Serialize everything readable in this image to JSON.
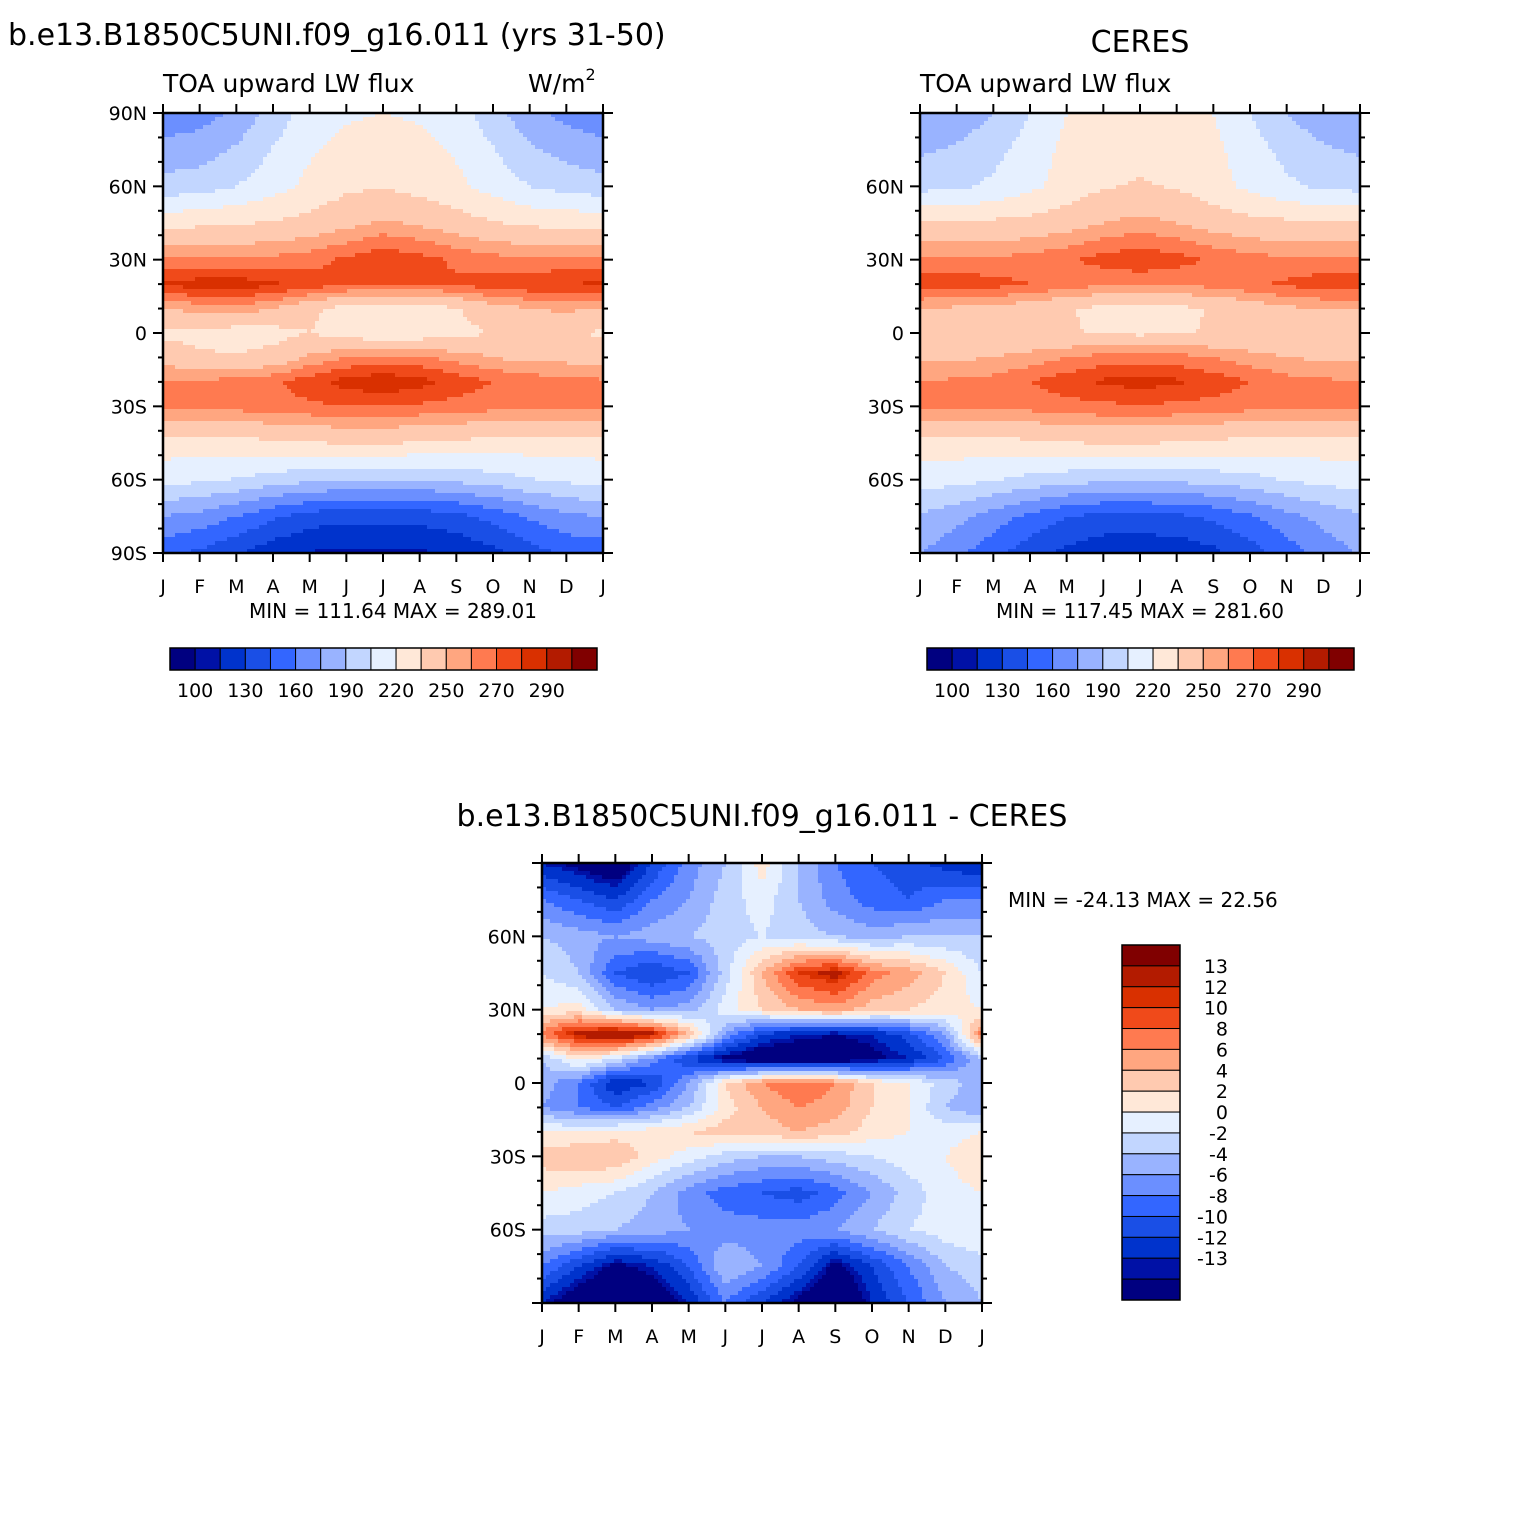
{
  "chart_data": [
    {
      "type": "heatmap",
      "title": "b.e13.B1850C5UNI.f09_g16.011 (yrs 31-50)",
      "subtitle": "TOA upward LW flux",
      "units": "W/m",
      "units_sup": "2",
      "x_ticks": [
        "J",
        "F",
        "M",
        "A",
        "M",
        "J",
        "J",
        "A",
        "S",
        "O",
        "N",
        "D",
        "J"
      ],
      "y_ticks": [
        "90N",
        "60N",
        "30N",
        "0",
        "30S",
        "60S",
        "90S"
      ],
      "ylim": [
        "90S",
        "90N"
      ],
      "stats": "MIN =  111.64  MAX =  289.01",
      "colorbar_labels": [
        "100",
        "130",
        "160",
        "190",
        "220",
        "250",
        "270",
        "290"
      ],
      "colorbar_position": "bottom",
      "y_nodes": [
        90,
        75,
        60,
        45,
        30,
        20,
        10,
        0,
        -10,
        -20,
        -30,
        -45,
        -60,
        -75,
        -90
      ],
      "rows": [
        [
          165,
          168,
          178,
          196,
          212,
          218,
          220,
          218,
          212,
          196,
          180,
          170,
          165
        ],
        [
          180,
          183,
          192,
          206,
          218,
          224,
          227,
          224,
          218,
          206,
          192,
          185,
          180
        ],
        [
          196,
          198,
          205,
          214,
          224,
          232,
          234,
          230,
          224,
          214,
          205,
          199,
          196
        ],
        [
          230,
          232,
          234,
          236,
          240,
          246,
          252,
          248,
          242,
          236,
          232,
          231,
          230
        ],
        [
          262,
          262,
          262,
          263,
          266,
          272,
          278,
          274,
          268,
          264,
          262,
          262,
          262
        ],
        [
          282,
          285,
          286,
          282,
          276,
          272,
          270,
          270,
          272,
          276,
          278,
          280,
          282
        ],
        [
          250,
          254,
          256,
          250,
          238,
          230,
          226,
          228,
          234,
          244,
          250,
          252,
          250
        ],
        [
          232,
          230,
          228,
          230,
          235,
          228,
          224,
          226,
          230,
          236,
          240,
          238,
          232
        ],
        [
          244,
          238,
          236,
          240,
          252,
          260,
          264,
          262,
          256,
          250,
          246,
          246,
          244
        ],
        [
          262,
          262,
          264,
          268,
          276,
          284,
          288,
          284,
          276,
          270,
          266,
          264,
          262
        ],
        [
          262,
          262,
          264,
          266,
          268,
          270,
          270,
          268,
          266,
          264,
          262,
          262,
          262
        ],
        [
          228,
          228,
          230,
          232,
          234,
          236,
          236,
          234,
          232,
          230,
          228,
          228,
          228
        ],
        [
          210,
          208,
          204,
          198,
          194,
          190,
          190,
          190,
          194,
          198,
          204,
          208,
          210
        ],
        [
          175,
          170,
          160,
          148,
          138,
          134,
          134,
          136,
          140,
          150,
          162,
          172,
          175
        ],
        [
          150,
          142,
          132,
          120,
          114,
          112,
          112,
          113,
          118,
          126,
          138,
          148,
          150
        ]
      ]
    },
    {
      "type": "heatmap",
      "title": "CERES",
      "subtitle": "TOA upward LW flux",
      "x_ticks": [
        "J",
        "F",
        "M",
        "A",
        "M",
        "J",
        "J",
        "A",
        "S",
        "O",
        "N",
        "D",
        "J"
      ],
      "y_ticks": [
        "60N",
        "30N",
        "0",
        "30S",
        "60S"
      ],
      "ylim": [
        "90S",
        "90N"
      ],
      "stats": "MIN =  117.45  MAX =  281.60",
      "colorbar_labels": [
        "100",
        "130",
        "160",
        "190",
        "220",
        "250",
        "270",
        "290"
      ],
      "colorbar_position": "bottom",
      "y_nodes": [
        90,
        75,
        60,
        45,
        30,
        20,
        10,
        0,
        -10,
        -20,
        -30,
        -45,
        -60,
        -75,
        -90
      ],
      "rows": [
        [
          175,
          180,
          190,
          205,
          220,
          228,
          230,
          228,
          220,
          205,
          190,
          180,
          175
        ],
        [
          188,
          192,
          200,
          212,
          224,
          230,
          232,
          230,
          224,
          212,
          200,
          192,
          188
        ],
        [
          200,
          202,
          208,
          216,
          226,
          234,
          236,
          234,
          226,
          216,
          208,
          202,
          200
        ],
        [
          236,
          236,
          238,
          240,
          244,
          250,
          254,
          250,
          244,
          240,
          238,
          236,
          236
        ],
        [
          262,
          262,
          262,
          264,
          268,
          274,
          278,
          274,
          268,
          264,
          262,
          262,
          262
        ],
        [
          276,
          276,
          274,
          270,
          266,
          262,
          262,
          262,
          264,
          268,
          272,
          276,
          276
        ],
        [
          250,
          248,
          246,
          242,
          236,
          232,
          230,
          232,
          236,
          242,
          248,
          250,
          250
        ],
        [
          244,
          242,
          240,
          238,
          236,
          234,
          232,
          234,
          236,
          238,
          240,
          242,
          244
        ],
        [
          248,
          248,
          250,
          254,
          260,
          264,
          266,
          264,
          260,
          254,
          250,
          248,
          248
        ],
        [
          260,
          262,
          264,
          270,
          276,
          282,
          284,
          282,
          276,
          270,
          264,
          262,
          260
        ],
        [
          262,
          262,
          262,
          264,
          266,
          268,
          268,
          268,
          266,
          264,
          262,
          262,
          262
        ],
        [
          228,
          228,
          230,
          232,
          234,
          236,
          236,
          234,
          232,
          230,
          228,
          228,
          228
        ],
        [
          212,
          210,
          206,
          200,
          196,
          194,
          194,
          194,
          196,
          200,
          206,
          210,
          212
        ],
        [
          188,
          180,
          168,
          156,
          146,
          140,
          140,
          142,
          148,
          158,
          170,
          180,
          188
        ],
        [
          176,
          164,
          150,
          136,
          126,
          120,
          119,
          120,
          126,
          138,
          152,
          166,
          176
        ]
      ]
    },
    {
      "type": "heatmap",
      "title": "b.e13.B1850C5UNI.f09_g16.011 - CERES",
      "x_ticks": [
        "J",
        "F",
        "M",
        "A",
        "M",
        "J",
        "J",
        "A",
        "S",
        "O",
        "N",
        "D",
        "J"
      ],
      "y_ticks": [
        "60N",
        "30N",
        "0",
        "30S",
        "60S"
      ],
      "ylim": [
        "90S",
        "90N"
      ],
      "stats": "MIN = -24.13 MAX =   22.56",
      "colorbar_labels": [
        "13",
        "12",
        "10",
        "8",
        "6",
        "4",
        "2",
        "0",
        "-2",
        "-4",
        "-6",
        "-8",
        "-10",
        "-12",
        "-13"
      ],
      "colorbar_position": "right",
      "y_nodes": [
        90,
        75,
        60,
        45,
        30,
        20,
        10,
        0,
        -10,
        -20,
        -30,
        -45,
        -60,
        -75,
        -90
      ],
      "rows": [
        [
          -12,
          -14,
          -16,
          -10,
          -5,
          -2,
          3,
          -2,
          -6,
          -8,
          -9,
          -11,
          -12
        ],
        [
          -6,
          -8,
          -10,
          -6,
          -4,
          -1,
          1,
          -2,
          -5,
          -7,
          -8,
          -6,
          -6
        ],
        [
          -2,
          -3,
          -4,
          -3,
          -2,
          -1,
          0,
          -1,
          -2,
          -3,
          -2,
          -2,
          -2
        ],
        [
          0,
          -2,
          -8,
          -10,
          -8,
          -1,
          6,
          12,
          14,
          9,
          7,
          4,
          0
        ],
        [
          2,
          3,
          -2,
          -4,
          -3,
          1,
          4,
          6,
          7,
          5,
          4,
          3,
          2
        ],
        [
          9,
          14,
          16,
          14,
          6,
          -4,
          -10,
          -12,
          -13,
          -12,
          -9,
          -4,
          9
        ],
        [
          -2,
          3,
          0,
          -5,
          -10,
          -14,
          -16,
          -16,
          -16,
          -14,
          -12,
          -8,
          -2
        ],
        [
          -3,
          -6,
          -12,
          -10,
          -4,
          4,
          8,
          10,
          8,
          4,
          2,
          -1,
          -3
        ],
        [
          -4,
          -6,
          -8,
          -5,
          -2,
          3,
          6,
          8,
          7,
          4,
          2,
          -2,
          -4
        ],
        [
          2,
          2,
          3,
          3,
          4,
          5,
          5,
          6,
          5,
          3,
          2,
          1,
          2
        ],
        [
          5,
          6,
          6,
          3,
          1,
          -1,
          -2,
          -2,
          -1,
          0,
          1,
          2,
          4
        ],
        [
          2,
          1,
          0,
          -2,
          -5,
          -7,
          -8,
          -9,
          -7,
          -4,
          -1,
          1,
          2
        ],
        [
          -1,
          -1,
          -2,
          -3,
          -4,
          -5,
          -5,
          -5,
          -4,
          -2,
          0,
          1,
          2
        ],
        [
          -6,
          -10,
          -14,
          -12,
          -8,
          -2,
          -4,
          -8,
          -14,
          -10,
          -6,
          -2,
          -1
        ],
        [
          -12,
          -16,
          -18,
          -16,
          -12,
          -6,
          -10,
          -14,
          -18,
          -12,
          -8,
          -4,
          -2
        ]
      ]
    }
  ],
  "colors": {
    "abs_fill": [
      "#000080",
      "#0011a6",
      "#0033cc",
      "#1a4fe6",
      "#3366ff",
      "#6b8fff",
      "#99b3ff",
      "#c2d6ff",
      "#e6f0ff",
      "#ffe8d8",
      "#ffcab0",
      "#ffa680",
      "#ff7a50",
      "#f04a1a",
      "#d93000",
      "#b31b00",
      "#800000"
    ],
    "abs_levels": [
      100,
      115,
      130,
      145,
      160,
      175,
      190,
      205,
      220,
      235,
      250,
      260,
      270,
      280,
      290,
      300
    ],
    "diff_fill": [
      "#000080",
      "#0011a6",
      "#0033cc",
      "#1a4fe6",
      "#3366ff",
      "#6b8fff",
      "#99b3ff",
      "#c2d6ff",
      "#e6f0ff",
      "#ffe8d8",
      "#ffcab0",
      "#ffa680",
      "#ff7a50",
      "#f04a1a",
      "#d93000",
      "#b31b00",
      "#800000"
    ],
    "diff_levels": [
      -13,
      -12,
      -10,
      -8,
      -6,
      -4,
      -2,
      0,
      2,
      4,
      6,
      8,
      10,
      12,
      13
    ]
  }
}
